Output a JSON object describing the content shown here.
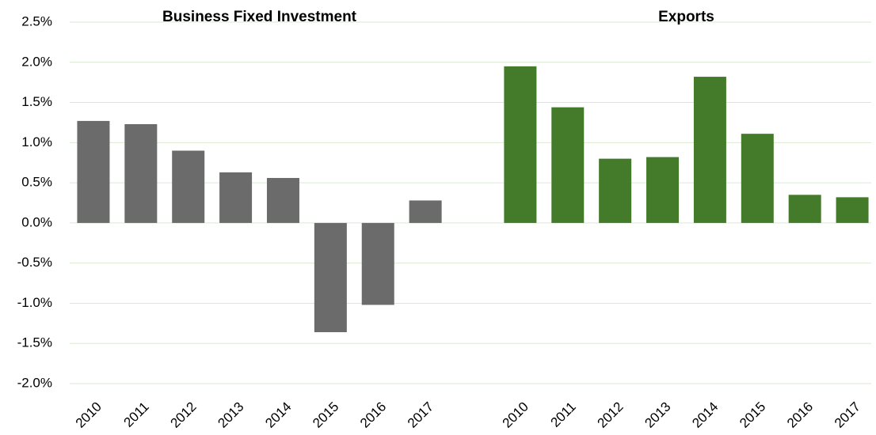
{
  "chart_data": {
    "type": "bar",
    "groups": [
      {
        "title": "Business Fixed Investment",
        "color": "#6b6b6b",
        "categories": [
          "2010",
          "2011",
          "2012",
          "2013",
          "2014",
          "2015",
          "2016",
          "2017"
        ],
        "values": [
          1.27,
          1.23,
          0.9,
          0.63,
          0.56,
          -1.36,
          -1.02,
          0.28
        ]
      },
      {
        "title": "Exports",
        "color": "#437b2a",
        "categories": [
          "2010",
          "2011",
          "2012",
          "2013",
          "2014",
          "2015",
          "2016",
          "2017"
        ],
        "values": [
          1.95,
          1.44,
          0.8,
          0.82,
          1.82,
          1.11,
          0.35,
          0.32
        ]
      }
    ],
    "ylim": [
      -2,
      2.5
    ],
    "yticks": [
      {
        "value": -2,
        "label": "-2.0%"
      },
      {
        "value": -1.5,
        "label": "-1.5%"
      },
      {
        "value": -1,
        "label": "-1.0%"
      },
      {
        "value": -0.5,
        "label": "-0.5%"
      },
      {
        "value": 0,
        "label": "0.0%"
      },
      {
        "value": 0.5,
        "label": "0.5%"
      },
      {
        "value": 1,
        "label": "1.0%"
      },
      {
        "value": 1.5,
        "label": "1.5%"
      },
      {
        "value": 2,
        "label": "2.0%"
      },
      {
        "value": 2.5,
        "label": "2.5%"
      }
    ],
    "grid": true
  }
}
